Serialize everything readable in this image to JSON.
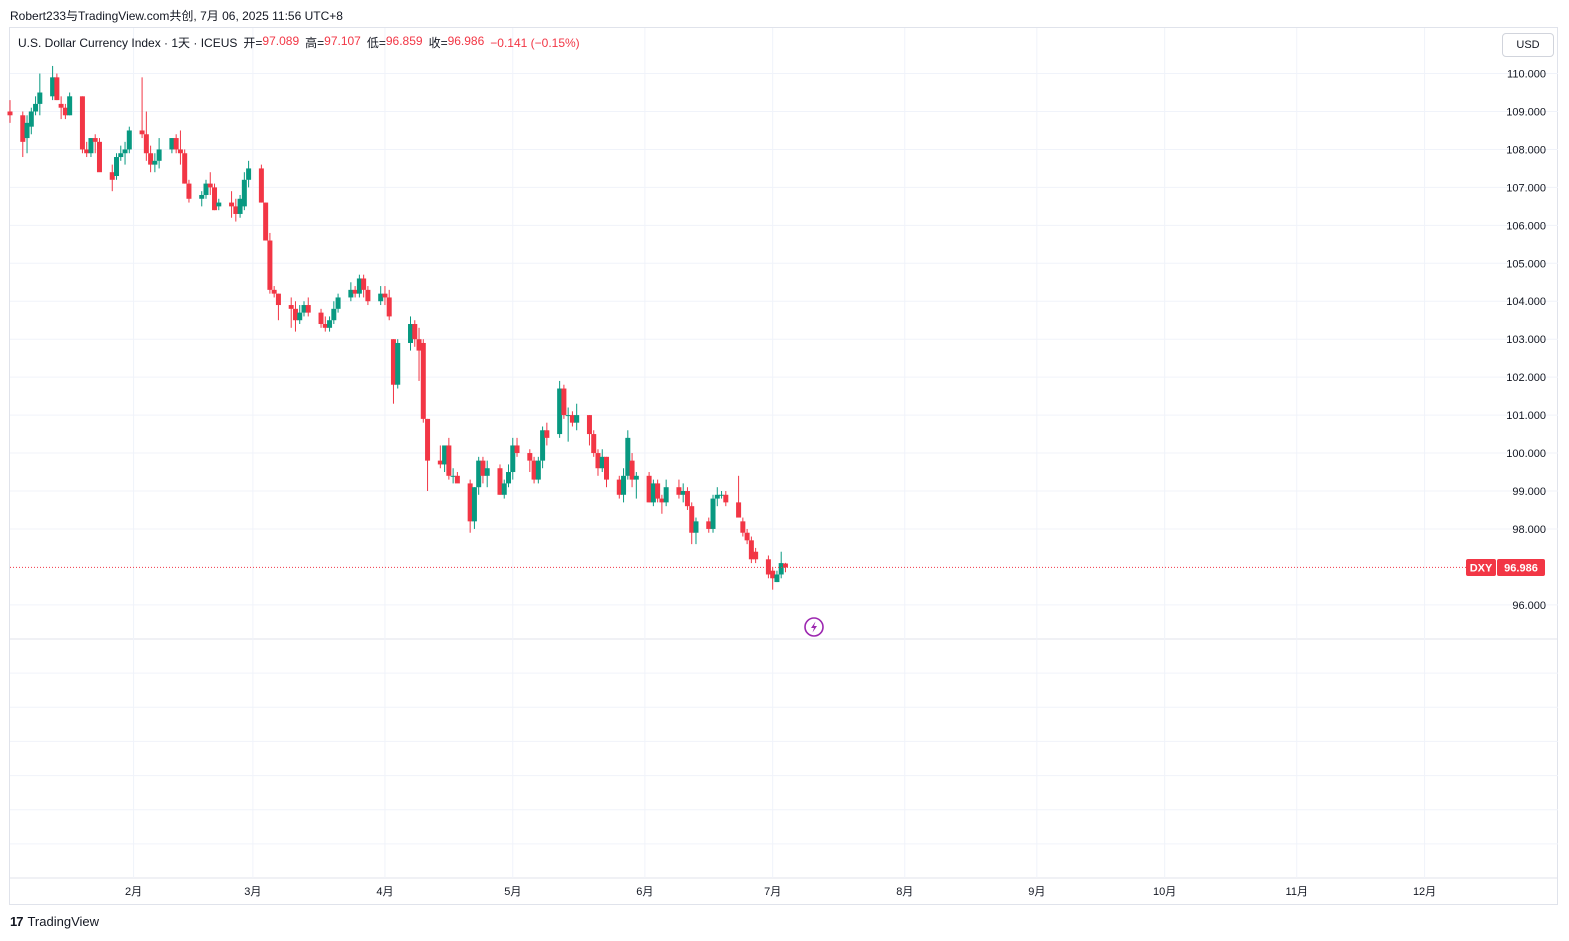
{
  "header": {
    "author_line": "Robert233与TradingView.com共创, 7月 06, 2025 11:56 UTC+8"
  },
  "legend": {
    "symbol_desc": "U.S. Dollar Currency Index · 1天 · ICEUS",
    "open_label": "开=",
    "open_value": "97.089",
    "high_label": "高=",
    "high_value": "97.107",
    "low_label": "低=",
    "low_value": "96.859",
    "close_label": "收=",
    "close_value": "96.986",
    "change": "−0.141 (−0.15%)"
  },
  "currency_button": "USD",
  "brand": {
    "logo": "17",
    "name": "TradingView"
  },
  "price_tag": {
    "symbol": "DXY",
    "value": "96.986"
  },
  "colors": {
    "up": "#089981",
    "down": "#f23645",
    "grid": "#f0f3fa",
    "text": "#131722",
    "event": "#9c27b0"
  },
  "icons": {
    "event_marker": "lightning-icon"
  },
  "chart_data": {
    "type": "candlestick",
    "symbol": "DXY",
    "title": "U.S. Dollar Currency Index",
    "interval": "1天",
    "y_ticks": [
      "96.000",
      "98.000",
      "99.000",
      "100.000",
      "101.000",
      "102.000",
      "103.000",
      "104.000",
      "105.000",
      "106.000",
      "107.000",
      "108.000",
      "109.000",
      "110.000"
    ],
    "y_tick_values": [
      96,
      98,
      99,
      100,
      101,
      102,
      103,
      104,
      105,
      106,
      107,
      108,
      109,
      110
    ],
    "ylim": [
      95.1,
      111.2
    ],
    "x_ticks": [
      "2月",
      "3月",
      "4月",
      "5月",
      "6月",
      "7月",
      "8月",
      "9月",
      "10月",
      "11月",
      "12月"
    ],
    "x_tick_dates": [
      "2025-02-01",
      "2025-03-01",
      "2025-04-01",
      "2025-05-01",
      "2025-06-01",
      "2025-07-01",
      "2025-08-01",
      "2025-09-01",
      "2025-10-01",
      "2025-11-01",
      "2025-12-01"
    ],
    "xlim": [
      "2025-01-03",
      "2025-12-18"
    ],
    "last_price": 96.986,
    "grid": true,
    "candles": [
      {
        "d": "2025-01-03",
        "o": 109.0,
        "h": 109.3,
        "l": 108.7,
        "c": 108.9
      },
      {
        "d": "2025-01-06",
        "o": 108.9,
        "h": 109.0,
        "l": 107.8,
        "c": 108.2
      },
      {
        "d": "2025-01-07",
        "o": 108.3,
        "h": 108.9,
        "l": 107.9,
        "c": 108.7
      },
      {
        "d": "2025-01-08",
        "o": 108.6,
        "h": 109.1,
        "l": 108.4,
        "c": 109.0
      },
      {
        "d": "2025-01-09",
        "o": 109.0,
        "h": 109.4,
        "l": 108.9,
        "c": 109.2
      },
      {
        "d": "2025-01-10",
        "o": 109.2,
        "h": 110.0,
        "l": 108.9,
        "c": 109.5
      },
      {
        "d": "2025-01-13",
        "o": 109.4,
        "h": 110.2,
        "l": 109.3,
        "c": 109.9
      },
      {
        "d": "2025-01-14",
        "o": 109.9,
        "h": 110.0,
        "l": 109.3,
        "c": 109.3
      },
      {
        "d": "2025-01-15",
        "o": 109.2,
        "h": 109.4,
        "l": 108.8,
        "c": 109.1
      },
      {
        "d": "2025-01-16",
        "o": 109.1,
        "h": 109.2,
        "l": 108.8,
        "c": 108.9
      },
      {
        "d": "2025-01-17",
        "o": 108.9,
        "h": 109.5,
        "l": 108.9,
        "c": 109.4
      },
      {
        "d": "2025-01-20",
        "o": 109.4,
        "h": 109.4,
        "l": 107.9,
        "c": 108.0
      },
      {
        "d": "2025-01-21",
        "o": 108.0,
        "h": 108.2,
        "l": 107.8,
        "c": 107.9
      },
      {
        "d": "2025-01-22",
        "o": 107.9,
        "h": 108.3,
        "l": 107.8,
        "c": 108.3
      },
      {
        "d": "2025-01-23",
        "o": 108.3,
        "h": 108.4,
        "l": 107.9,
        "c": 108.2
      },
      {
        "d": "2025-01-24",
        "o": 108.2,
        "h": 108.3,
        "l": 107.5,
        "c": 107.4
      },
      {
        "d": "2025-01-27",
        "o": 107.4,
        "h": 107.6,
        "l": 106.9,
        "c": 107.2
      },
      {
        "d": "2025-01-28",
        "o": 107.3,
        "h": 107.9,
        "l": 107.2,
        "c": 107.8
      },
      {
        "d": "2025-01-29",
        "o": 107.8,
        "h": 108.1,
        "l": 107.7,
        "c": 107.9
      },
      {
        "d": "2025-01-30",
        "o": 107.9,
        "h": 108.2,
        "l": 107.6,
        "c": 108.0
      },
      {
        "d": "2025-01-31",
        "o": 108.0,
        "h": 108.6,
        "l": 107.9,
        "c": 108.5
      },
      {
        "d": "2025-02-03",
        "o": 108.5,
        "h": 109.9,
        "l": 108.3,
        "c": 108.4
      },
      {
        "d": "2025-02-04",
        "o": 108.4,
        "h": 109.0,
        "l": 107.7,
        "c": 107.9
      },
      {
        "d": "2025-02-05",
        "o": 107.9,
        "h": 108.1,
        "l": 107.4,
        "c": 107.6
      },
      {
        "d": "2025-02-06",
        "o": 107.6,
        "h": 107.9,
        "l": 107.4,
        "c": 107.7
      },
      {
        "d": "2025-02-07",
        "o": 107.7,
        "h": 108.3,
        "l": 107.5,
        "c": 108.0
      },
      {
        "d": "2025-02-10",
        "o": 108.0,
        "h": 108.3,
        "l": 107.9,
        "c": 108.3
      },
      {
        "d": "2025-02-11",
        "o": 108.3,
        "h": 108.4,
        "l": 107.9,
        "c": 108.0
      },
      {
        "d": "2025-02-12",
        "o": 108.0,
        "h": 108.5,
        "l": 107.6,
        "c": 107.9
      },
      {
        "d": "2025-02-13",
        "o": 107.9,
        "h": 108.0,
        "l": 107.1,
        "c": 107.1
      },
      {
        "d": "2025-02-14",
        "o": 107.1,
        "h": 107.2,
        "l": 106.6,
        "c": 106.7
      },
      {
        "d": "2025-02-17",
        "o": 106.7,
        "h": 106.9,
        "l": 106.5,
        "c": 106.8
      },
      {
        "d": "2025-02-18",
        "o": 106.8,
        "h": 107.2,
        "l": 106.7,
        "c": 107.1
      },
      {
        "d": "2025-02-19",
        "o": 107.1,
        "h": 107.4,
        "l": 106.8,
        "c": 107.0
      },
      {
        "d": "2025-02-20",
        "o": 107.0,
        "h": 107.1,
        "l": 106.4,
        "c": 106.4
      },
      {
        "d": "2025-02-21",
        "o": 106.5,
        "h": 106.7,
        "l": 106.4,
        "c": 106.6
      },
      {
        "d": "2025-02-24",
        "o": 106.6,
        "h": 106.9,
        "l": 106.2,
        "c": 106.5
      },
      {
        "d": "2025-02-25",
        "o": 106.5,
        "h": 106.7,
        "l": 106.1,
        "c": 106.3
      },
      {
        "d": "2025-02-26",
        "o": 106.3,
        "h": 106.8,
        "l": 106.2,
        "c": 106.7
      },
      {
        "d": "2025-02-27",
        "o": 106.5,
        "h": 107.4,
        "l": 106.4,
        "c": 107.2
      },
      {
        "d": "2025-02-28",
        "o": 107.2,
        "h": 107.7,
        "l": 107.0,
        "c": 107.5
      },
      {
        "d": "2025-03-03",
        "o": 107.5,
        "h": 107.6,
        "l": 106.6,
        "c": 106.6
      },
      {
        "d": "2025-03-04",
        "o": 106.6,
        "h": 106.6,
        "l": 105.6,
        "c": 105.6
      },
      {
        "d": "2025-03-05",
        "o": 105.6,
        "h": 105.8,
        "l": 104.2,
        "c": 104.3
      },
      {
        "d": "2025-03-06",
        "o": 104.3,
        "h": 104.4,
        "l": 104.1,
        "c": 104.2
      },
      {
        "d": "2025-03-07",
        "o": 104.2,
        "h": 104.2,
        "l": 103.5,
        "c": 103.9
      },
      {
        "d": "2025-03-10",
        "o": 103.9,
        "h": 104.1,
        "l": 103.3,
        "c": 103.8
      },
      {
        "d": "2025-03-11",
        "o": 103.8,
        "h": 104.0,
        "l": 103.2,
        "c": 103.5
      },
      {
        "d": "2025-03-12",
        "o": 103.5,
        "h": 103.9,
        "l": 103.4,
        "c": 103.7
      },
      {
        "d": "2025-03-13",
        "o": 103.7,
        "h": 104.0,
        "l": 103.6,
        "c": 103.9
      },
      {
        "d": "2025-03-14",
        "o": 103.9,
        "h": 104.1,
        "l": 103.6,
        "c": 103.7
      },
      {
        "d": "2025-03-17",
        "o": 103.7,
        "h": 103.8,
        "l": 103.3,
        "c": 103.4
      },
      {
        "d": "2025-03-18",
        "o": 103.4,
        "h": 103.6,
        "l": 103.2,
        "c": 103.3
      },
      {
        "d": "2025-03-19",
        "o": 103.3,
        "h": 103.6,
        "l": 103.2,
        "c": 103.5
      },
      {
        "d": "2025-03-20",
        "o": 103.5,
        "h": 104.0,
        "l": 103.4,
        "c": 103.8
      },
      {
        "d": "2025-03-21",
        "o": 103.8,
        "h": 104.2,
        "l": 103.7,
        "c": 104.1
      },
      {
        "d": "2025-03-24",
        "o": 104.1,
        "h": 104.5,
        "l": 104.0,
        "c": 104.3
      },
      {
        "d": "2025-03-25",
        "o": 104.3,
        "h": 104.4,
        "l": 104.1,
        "c": 104.2
      },
      {
        "d": "2025-03-26",
        "o": 104.2,
        "h": 104.7,
        "l": 104.1,
        "c": 104.6
      },
      {
        "d": "2025-03-27",
        "o": 104.6,
        "h": 104.7,
        "l": 104.1,
        "c": 104.3
      },
      {
        "d": "2025-03-28",
        "o": 104.3,
        "h": 104.4,
        "l": 103.9,
        "c": 104.0
      },
      {
        "d": "2025-03-31",
        "o": 104.0,
        "h": 104.4,
        "l": 103.9,
        "c": 104.2
      },
      {
        "d": "2025-04-01",
        "o": 104.2,
        "h": 104.4,
        "l": 103.9,
        "c": 104.1
      },
      {
        "d": "2025-04-02",
        "o": 104.1,
        "h": 104.3,
        "l": 103.5,
        "c": 103.6
      },
      {
        "d": "2025-04-03",
        "o": 103.0,
        "h": 103.0,
        "l": 101.3,
        "c": 101.8
      },
      {
        "d": "2025-04-04",
        "o": 101.8,
        "h": 103.0,
        "l": 101.7,
        "c": 102.9
      },
      {
        "d": "2025-04-07",
        "o": 102.9,
        "h": 103.6,
        "l": 102.7,
        "c": 103.4
      },
      {
        "d": "2025-04-08",
        "o": 103.4,
        "h": 103.5,
        "l": 102.8,
        "c": 103.0
      },
      {
        "d": "2025-04-09",
        "o": 103.0,
        "h": 103.3,
        "l": 101.9,
        "c": 102.7
      },
      {
        "d": "2025-04-10",
        "o": 102.9,
        "h": 103.0,
        "l": 100.8,
        "c": 100.9
      },
      {
        "d": "2025-04-11",
        "o": 100.9,
        "h": 100.9,
        "l": 99.0,
        "c": 99.8
      },
      {
        "d": "2025-04-14",
        "o": 99.8,
        "h": 100.2,
        "l": 99.6,
        "c": 99.7
      },
      {
        "d": "2025-04-15",
        "o": 99.7,
        "h": 100.1,
        "l": 99.5,
        "c": 100.2
      },
      {
        "d": "2025-04-16",
        "o": 100.2,
        "h": 100.4,
        "l": 99.3,
        "c": 99.4
      },
      {
        "d": "2025-04-17",
        "o": 99.4,
        "h": 99.6,
        "l": 99.2,
        "c": 99.4
      },
      {
        "d": "2025-04-18",
        "o": 99.4,
        "h": 99.5,
        "l": 99.3,
        "c": 99.2
      },
      {
        "d": "2025-04-21",
        "o": 99.2,
        "h": 99.3,
        "l": 97.9,
        "c": 98.2
      },
      {
        "d": "2025-04-22",
        "o": 98.2,
        "h": 99.1,
        "l": 98.0,
        "c": 99.1
      },
      {
        "d": "2025-04-23",
        "o": 99.1,
        "h": 99.9,
        "l": 98.9,
        "c": 99.8
      },
      {
        "d": "2025-04-24",
        "o": 99.8,
        "h": 99.9,
        "l": 99.2,
        "c": 99.4
      },
      {
        "d": "2025-04-25",
        "o": 99.4,
        "h": 99.8,
        "l": 99.1,
        "c": 99.6
      },
      {
        "d": "2025-04-28",
        "o": 99.6,
        "h": 99.7,
        "l": 98.9,
        "c": 98.9
      },
      {
        "d": "2025-04-29",
        "o": 98.9,
        "h": 99.3,
        "l": 98.8,
        "c": 99.2
      },
      {
        "d": "2025-04-30",
        "o": 99.2,
        "h": 99.7,
        "l": 99.1,
        "c": 99.5
      },
      {
        "d": "2025-05-01",
        "o": 99.5,
        "h": 100.4,
        "l": 99.3,
        "c": 100.2
      },
      {
        "d": "2025-05-02",
        "o": 100.2,
        "h": 100.4,
        "l": 99.9,
        "c": 100.0
      },
      {
        "d": "2025-05-05",
        "o": 100.0,
        "h": 100.1,
        "l": 99.5,
        "c": 99.8
      },
      {
        "d": "2025-05-06",
        "o": 99.8,
        "h": 99.9,
        "l": 99.2,
        "c": 99.3
      },
      {
        "d": "2025-05-07",
        "o": 99.3,
        "h": 99.9,
        "l": 99.2,
        "c": 99.8
      },
      {
        "d": "2025-05-08",
        "o": 99.8,
        "h": 100.7,
        "l": 99.6,
        "c": 100.6
      },
      {
        "d": "2025-05-09",
        "o": 100.6,
        "h": 100.8,
        "l": 100.2,
        "c": 100.4
      },
      {
        "d": "2025-05-12",
        "o": 100.5,
        "h": 101.9,
        "l": 100.4,
        "c": 101.7
      },
      {
        "d": "2025-05-13",
        "o": 101.7,
        "h": 101.8,
        "l": 100.9,
        "c": 101.0
      },
      {
        "d": "2025-05-14",
        "o": 101.0,
        "h": 101.2,
        "l": 100.3,
        "c": 101.0
      },
      {
        "d": "2025-05-15",
        "o": 101.0,
        "h": 101.1,
        "l": 100.7,
        "c": 100.8
      },
      {
        "d": "2025-05-16",
        "o": 100.8,
        "h": 101.3,
        "l": 100.6,
        "c": 101.0
      },
      {
        "d": "2025-05-19",
        "o": 101.0,
        "h": 101.0,
        "l": 100.2,
        "c": 100.5
      },
      {
        "d": "2025-05-20",
        "o": 100.5,
        "h": 100.6,
        "l": 99.9,
        "c": 100.0
      },
      {
        "d": "2025-05-21",
        "o": 100.0,
        "h": 100.1,
        "l": 99.4,
        "c": 99.6
      },
      {
        "d": "2025-05-22",
        "o": 99.6,
        "h": 100.1,
        "l": 99.5,
        "c": 99.9
      },
      {
        "d": "2025-05-23",
        "o": 99.9,
        "h": 99.9,
        "l": 99.1,
        "c": 99.3
      },
      {
        "d": "2025-05-26",
        "o": 99.3,
        "h": 99.4,
        "l": 98.8,
        "c": 98.9
      },
      {
        "d": "2025-05-27",
        "o": 98.9,
        "h": 99.6,
        "l": 98.7,
        "c": 99.4
      },
      {
        "d": "2025-05-28",
        "o": 99.4,
        "h": 100.6,
        "l": 99.3,
        "c": 100.4
      },
      {
        "d": "2025-05-29",
        "o": 99.8,
        "h": 100.0,
        "l": 99.1,
        "c": 99.3
      },
      {
        "d": "2025-05-30",
        "o": 99.3,
        "h": 99.5,
        "l": 98.8,
        "c": 99.4
      },
      {
        "d": "2025-06-02",
        "o": 99.4,
        "h": 99.5,
        "l": 98.7,
        "c": 98.7
      },
      {
        "d": "2025-06-03",
        "o": 98.7,
        "h": 99.3,
        "l": 98.6,
        "c": 99.2
      },
      {
        "d": "2025-06-04",
        "o": 99.2,
        "h": 99.3,
        "l": 98.7,
        "c": 98.8
      },
      {
        "d": "2025-06-05",
        "o": 98.8,
        "h": 98.9,
        "l": 98.4,
        "c": 98.7
      },
      {
        "d": "2025-06-06",
        "o": 98.7,
        "h": 99.3,
        "l": 98.6,
        "c": 99.1
      },
      {
        "d": "2025-06-09",
        "o": 99.1,
        "h": 99.3,
        "l": 98.8,
        "c": 98.9
      },
      {
        "d": "2025-06-10",
        "o": 98.9,
        "h": 99.2,
        "l": 98.7,
        "c": 99.0
      },
      {
        "d": "2025-06-11",
        "o": 99.0,
        "h": 99.1,
        "l": 98.5,
        "c": 98.6
      },
      {
        "d": "2025-06-12",
        "o": 98.6,
        "h": 98.7,
        "l": 97.6,
        "c": 97.9
      },
      {
        "d": "2025-06-13",
        "o": 97.9,
        "h": 98.3,
        "l": 97.6,
        "c": 98.2
      },
      {
        "d": "2025-06-16",
        "o": 98.2,
        "h": 98.3,
        "l": 97.9,
        "c": 98.0
      },
      {
        "d": "2025-06-17",
        "o": 98.0,
        "h": 98.9,
        "l": 97.9,
        "c": 98.8
      },
      {
        "d": "2025-06-18",
        "o": 98.8,
        "h": 99.1,
        "l": 98.6,
        "c": 98.9
      },
      {
        "d": "2025-06-19",
        "o": 98.9,
        "h": 99.0,
        "l": 98.8,
        "c": 98.9
      },
      {
        "d": "2025-06-20",
        "o": 98.9,
        "h": 99.0,
        "l": 98.6,
        "c": 98.7
      },
      {
        "d": "2025-06-23",
        "o": 98.7,
        "h": 99.4,
        "l": 98.4,
        "c": 98.3
      },
      {
        "d": "2025-06-24",
        "o": 98.2,
        "h": 98.3,
        "l": 97.8,
        "c": 97.9
      },
      {
        "d": "2025-06-25",
        "o": 97.9,
        "h": 98.0,
        "l": 97.6,
        "c": 97.7
      },
      {
        "d": "2025-06-26",
        "o": 97.7,
        "h": 97.8,
        "l": 97.1,
        "c": 97.2
      },
      {
        "d": "2025-06-27",
        "o": 97.4,
        "h": 97.5,
        "l": 97.1,
        "c": 97.2
      },
      {
        "d": "2025-06-30",
        "o": 97.2,
        "h": 97.3,
        "l": 96.7,
        "c": 96.8
      },
      {
        "d": "2025-07-01",
        "o": 96.9,
        "h": 97.0,
        "l": 96.4,
        "c": 96.7
      },
      {
        "d": "2025-07-02",
        "o": 96.6,
        "h": 96.9,
        "l": 96.6,
        "c": 96.8
      },
      {
        "d": "2025-07-03",
        "o": 96.8,
        "h": 97.4,
        "l": 96.7,
        "c": 97.1
      },
      {
        "d": "2025-07-04",
        "o": 97.089,
        "h": 97.107,
        "l": 96.859,
        "c": 96.986
      }
    ]
  }
}
